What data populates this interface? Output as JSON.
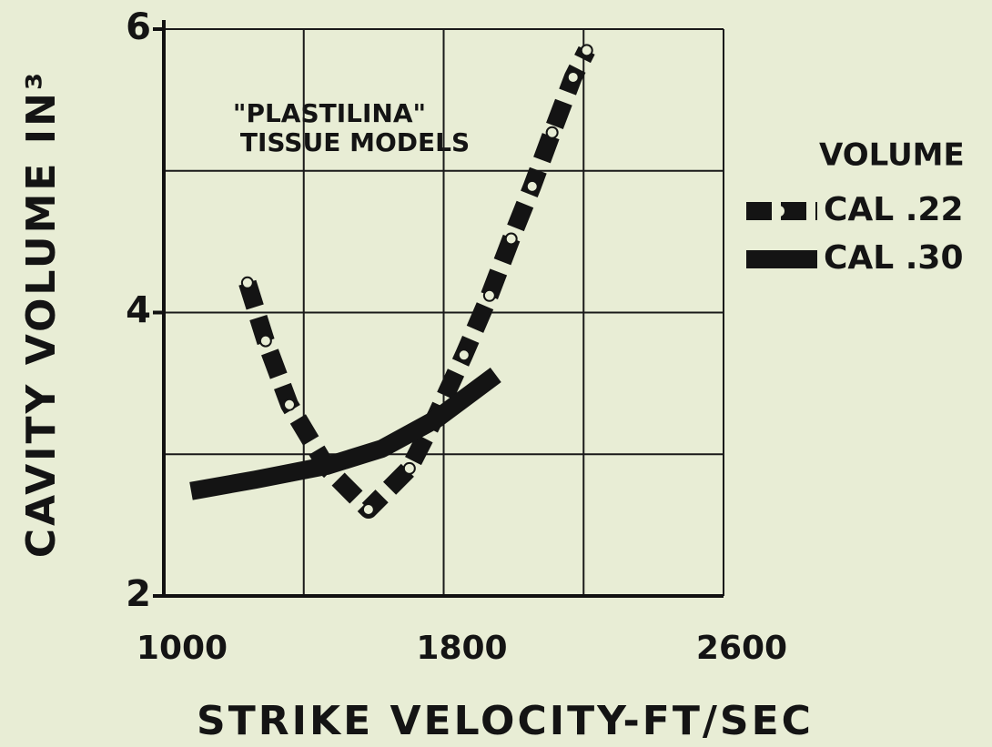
{
  "chart_data": {
    "type": "line",
    "xlabel": "STRIKE VELOCITY-FT/SEC",
    "ylabel": "CAVITY VOLUME IN³",
    "annotations": [
      "\"PLASTILINA\"",
      "TISSUE MODELS"
    ],
    "legend_title": "VOLUME",
    "legend": "right",
    "xlim": [
      1000,
      2600
    ],
    "xticks": [
      1000,
      1800,
      2600
    ],
    "ylim": [
      2,
      6
    ],
    "yticks": [
      2,
      4,
      6
    ],
    "grid": true,
    "xgrid": [
      1000,
      1400,
      1800,
      2200,
      2600
    ],
    "ygrid": [
      2,
      3,
      4,
      5,
      6
    ],
    "series": [
      {
        "name": "CAL .22",
        "color": "#141414",
        "style": "dashdot",
        "x": [
          1239,
          1291,
          1359,
          1468,
          1585,
          1702,
          1780,
          1858,
          1931,
          1993,
          2053,
          2110,
          2170,
          2209
        ],
        "values": [
          4.21,
          3.8,
          3.35,
          2.9,
          2.61,
          2.9,
          3.28,
          3.7,
          4.12,
          4.52,
          4.89,
          5.27,
          5.66,
          5.85
        ]
      },
      {
        "name": "CAL .30",
        "color": "#141414",
        "style": "solid",
        "x": [
          1078,
          1260,
          1468,
          1624,
          1780,
          1949
        ],
        "values": [
          2.74,
          2.82,
          2.92,
          3.04,
          3.25,
          3.56
        ]
      }
    ]
  }
}
